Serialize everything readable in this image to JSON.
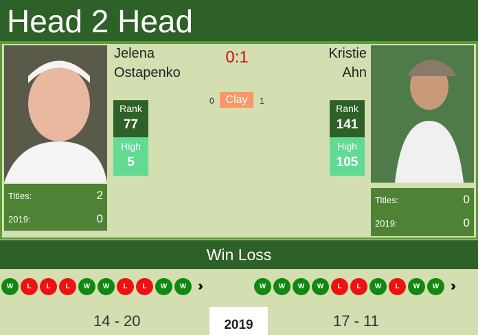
{
  "header": {
    "title": "Head 2 Head"
  },
  "score": "0:1",
  "surface": {
    "label": "Clay",
    "left_count": "0",
    "right_count": "1",
    "color": "#fb9666"
  },
  "player1": {
    "first": "Jelena",
    "last": "Ostapenko",
    "rank_label": "Rank",
    "rank": "77",
    "high_label": "High",
    "high": "5",
    "titles_label": "Titles:",
    "titles": "2",
    "year_label": "2019:",
    "year_titles": "0",
    "form": [
      "W",
      "L",
      "L",
      "L",
      "W",
      "W",
      "L",
      "L",
      "W",
      "W"
    ],
    "record": "14 - 20"
  },
  "player2": {
    "first": "Kristie",
    "last": "Ahn",
    "rank_label": "Rank",
    "rank": "141",
    "high_label": "High",
    "high": "105",
    "titles_label": "Titles:",
    "titles": "0",
    "year_label": "2019:",
    "year_titles": "0",
    "form": [
      "W",
      "W",
      "W",
      "W",
      "L",
      "L",
      "W",
      "L",
      "W",
      "W"
    ],
    "record": "17 - 11"
  },
  "winloss": {
    "title": "Win Loss",
    "year": "2019",
    "more_icon": "triple-chevron-right"
  }
}
